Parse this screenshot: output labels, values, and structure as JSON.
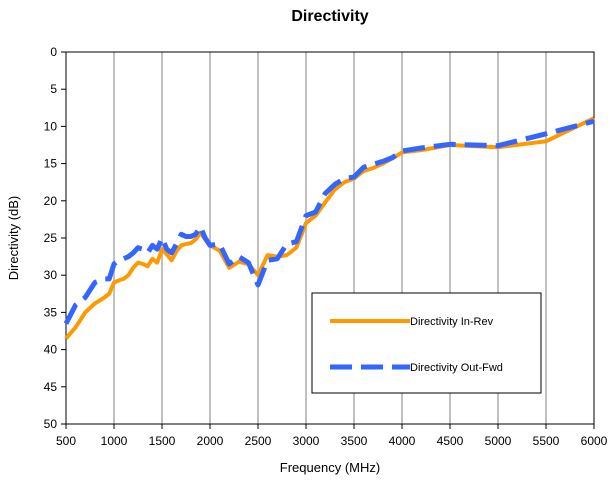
{
  "chart_data": {
    "type": "line",
    "title": "Directivity",
    "xlabel": "Frequency (MHz)",
    "ylabel": "Directivity (dB)",
    "xlim": [
      500,
      6000
    ],
    "ylim": [
      0,
      50
    ],
    "y_inverted": true,
    "x_ticks": [
      500,
      1000,
      1500,
      2000,
      2500,
      3000,
      3500,
      4000,
      4500,
      5000,
      5500,
      6000
    ],
    "y_ticks": [
      0,
      5,
      10,
      15,
      20,
      25,
      30,
      35,
      40,
      45,
      50
    ],
    "grid": "vertical",
    "legend_position": "bottom-right",
    "series": [
      {
        "name": "Directivity In-Rev",
        "color": "#FF9900",
        "style": "solid",
        "x": [
          500,
          600,
          700,
          800,
          900,
          950,
          1000,
          1050,
          1100,
          1150,
          1200,
          1250,
          1300,
          1350,
          1400,
          1450,
          1500,
          1550,
          1600,
          1650,
          1700,
          1750,
          1800,
          1850,
          1900,
          1950,
          2000,
          2100,
          2200,
          2300,
          2400,
          2500,
          2600,
          2700,
          2800,
          2900,
          3000,
          3100,
          3200,
          3300,
          3400,
          3500,
          3600,
          3700,
          3800,
          3900,
          4000,
          4200,
          4500,
          5000,
          5500,
          6000
        ],
        "y": [
          38.5,
          37,
          35,
          33.8,
          33,
          32.5,
          31,
          30.7,
          30.5,
          30,
          29,
          28.3,
          28.5,
          28.8,
          27.8,
          28.3,
          26.5,
          27.2,
          28,
          26.8,
          26,
          25.8,
          25.7,
          25.2,
          24.3,
          25.2,
          26,
          26.7,
          29,
          28.2,
          28.5,
          30,
          27.3,
          27.5,
          27.3,
          26.3,
          23,
          22,
          20.2,
          18.5,
          17.5,
          17,
          16,
          15.6,
          15,
          14.3,
          13.5,
          13.2,
          12.5,
          12.8,
          12,
          8.9
        ]
      },
      {
        "name": "Directivity Out-Fwd",
        "color": "#3366FF",
        "style": "dashed",
        "x": [
          500,
          600,
          700,
          800,
          900,
          950,
          1000,
          1050,
          1100,
          1150,
          1200,
          1250,
          1300,
          1350,
          1400,
          1450,
          1500,
          1550,
          1600,
          1650,
          1700,
          1750,
          1800,
          1850,
          1900,
          1950,
          2000,
          2100,
          2200,
          2300,
          2400,
          2500,
          2600,
          2700,
          2800,
          2900,
          3000,
          3100,
          3200,
          3300,
          3400,
          3500,
          3600,
          3700,
          3800,
          3900,
          4000,
          4200,
          4500,
          5000,
          5500,
          6000
        ],
        "y": [
          36.5,
          34,
          33,
          31,
          30.5,
          30.5,
          28.5,
          28,
          27.8,
          27.5,
          27,
          26.3,
          26.5,
          27,
          26,
          26.5,
          25,
          26.5,
          27,
          25.8,
          24.5,
          24.8,
          24.8,
          24.5,
          23.5,
          25,
          26,
          25.8,
          28.5,
          27.5,
          28.3,
          31.3,
          28,
          27.8,
          25.8,
          25.5,
          22,
          21.5,
          19,
          17.8,
          17,
          16.8,
          15.5,
          15.1,
          14.7,
          14.2,
          13.3,
          12.9,
          12.4,
          12.6,
          11,
          9.3
        ]
      }
    ]
  }
}
